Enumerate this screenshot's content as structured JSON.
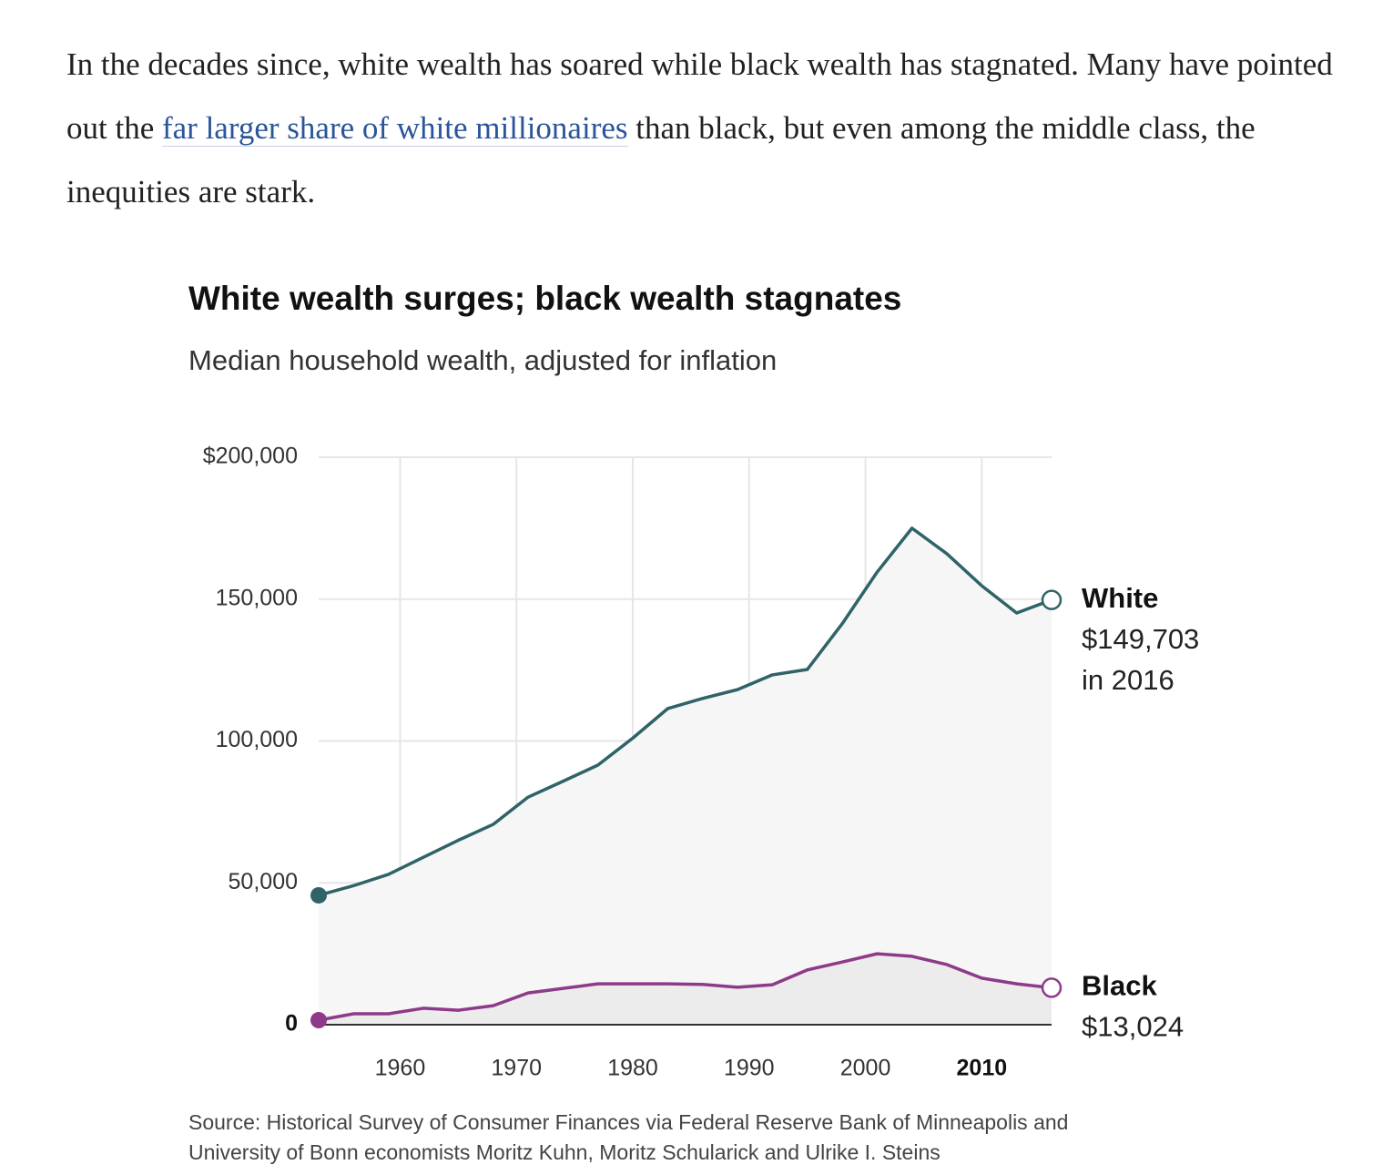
{
  "article": {
    "paragraph": [
      "In the decades since, white wealth has soared while black wealth has stagnated. Many have pointed out the ",
      "far larger share of white millionaires",
      " than black, but even among the middle class, the inequities are stark."
    ]
  },
  "chart_data": {
    "type": "line",
    "title": "White wealth surges; black wealth stagnates",
    "subtitle": "Median household wealth, adjusted for inflation",
    "x": [
      1953,
      1956,
      1959,
      1962,
      1965,
      1968,
      1971,
      1974,
      1977,
      1980,
      1983,
      1986,
      1989,
      1992,
      1995,
      1998,
      2001,
      2004,
      2007,
      2010,
      2013,
      2016
    ],
    "series": [
      {
        "name": "White",
        "color": "#2f6367",
        "area_color": "#f6f6f6",
        "values": [
          45600,
          49000,
          53000,
          59000,
          65000,
          70600,
          80200,
          85800,
          91500,
          101000,
          111400,
          115000,
          118100,
          123300,
          125200,
          141300,
          159500,
          175000,
          166000,
          154700,
          145100,
          149703
        ]
      },
      {
        "name": "Black",
        "color": "#8e3a8a",
        "area_color": "#ececec",
        "values": [
          1600,
          3850,
          3850,
          5800,
          5100,
          6700,
          11200,
          12800,
          14400,
          14400,
          14400,
          14200,
          13200,
          14100,
          19300,
          22100,
          25000,
          24100,
          21200,
          16400,
          14400,
          13024
        ]
      }
    ],
    "annotations": [
      {
        "label": "White",
        "amount": "$149,703",
        "note": "in 2016"
      },
      {
        "label": "Black",
        "amount": "$13,024"
      }
    ],
    "xlim": [
      1953,
      2016
    ],
    "ylim": [
      0,
      200000
    ],
    "xticks": [
      1960,
      1970,
      1980,
      1990,
      2000,
      2010
    ],
    "yticks": [
      0,
      {
        "value": 50000,
        "label": "50,000"
      },
      {
        "value": 100000,
        "label": "100,000"
      },
      {
        "value": 150000,
        "label": "150,000"
      },
      {
        "value": 200000,
        "label": "$200,000"
      }
    ],
    "grid": true,
    "source": [
      "Source: Historical Survey of Consumer Finances via Federal Reserve Bank of Minneapolis and",
      "University of Bonn economists Moritz Kuhn, Moritz Schularick and Ulrike I. Steins"
    ]
  }
}
